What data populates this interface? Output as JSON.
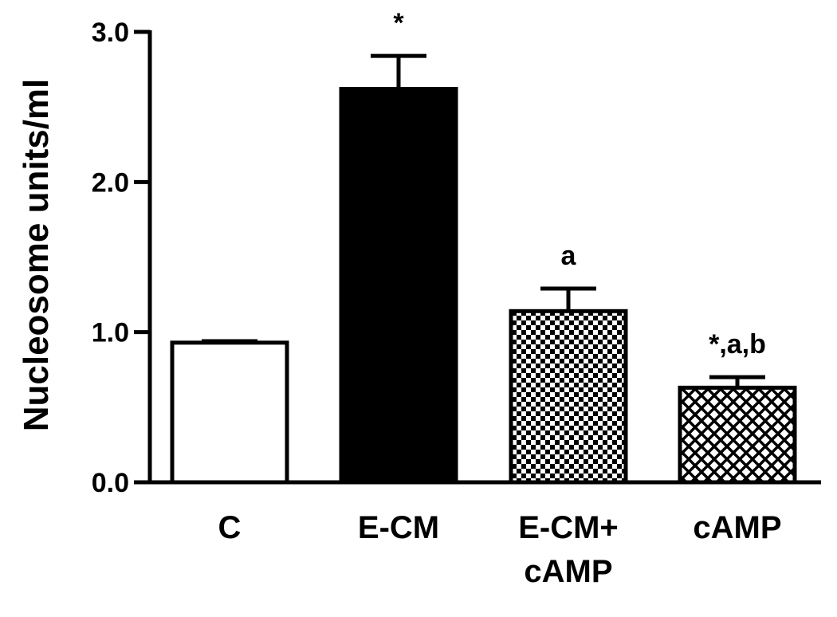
{
  "chart_data": {
    "type": "bar",
    "title": "",
    "xlabel": "",
    "ylabel": "Nucleosome units/ml",
    "ylim": [
      0,
      3.0
    ],
    "yticks": [
      "0.0",
      "1.0",
      "2.0",
      "3.0"
    ],
    "categories": [
      {
        "lines": [
          "C"
        ]
      },
      {
        "lines": [
          "E-CM"
        ]
      },
      {
        "lines": [
          "E-CM+",
          "cAMP"
        ]
      },
      {
        "lines": [
          "cAMP"
        ]
      }
    ],
    "values": [
      0.93,
      2.62,
      1.14,
      0.63
    ],
    "errors": [
      0.01,
      0.22,
      0.15,
      0.07
    ],
    "fills": [
      "white",
      "black",
      "checker",
      "crosshatch"
    ],
    "annotations": [
      "",
      "*",
      "a",
      "*,a,b"
    ],
    "grid": false
  }
}
